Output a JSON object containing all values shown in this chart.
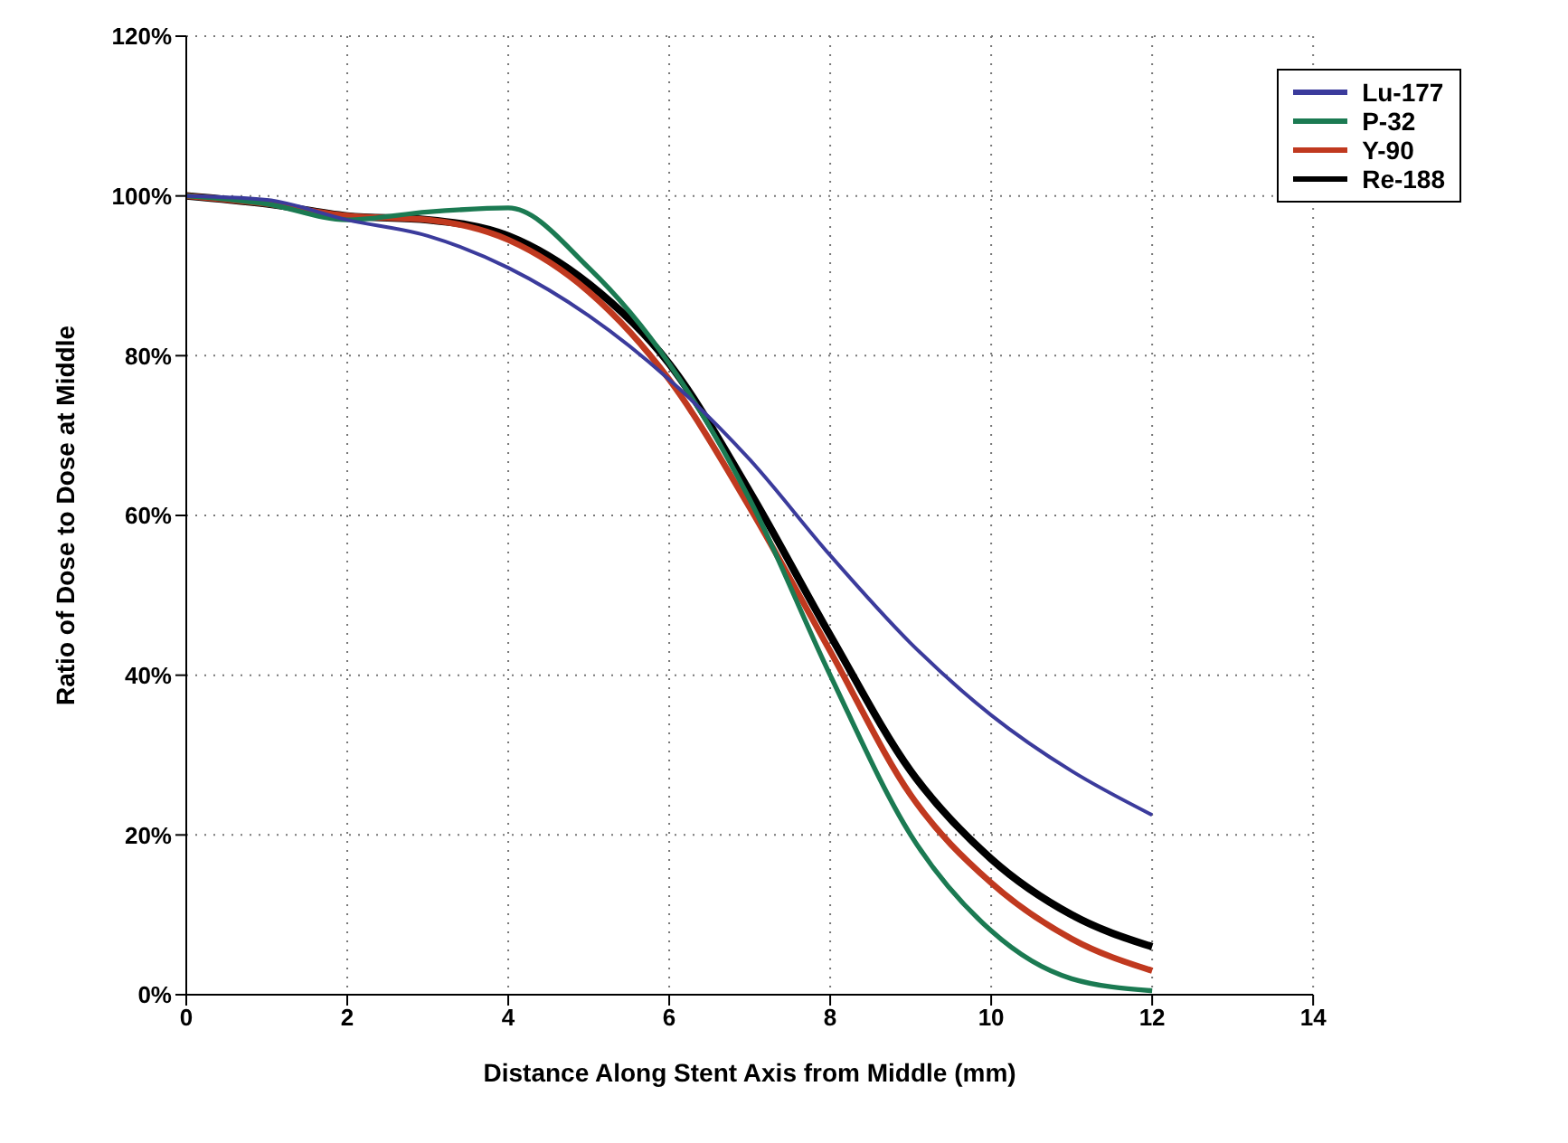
{
  "chart_data": {
    "type": "line",
    "xlabel": "Distance Along Stent Axis from Middle (mm)",
    "ylabel": "Ratio of Dose to Dose at Middle",
    "x": [
      0,
      1,
      2,
      3,
      4,
      5,
      6,
      7,
      8,
      9,
      10,
      11,
      12
    ],
    "series": [
      {
        "name": "Lu-177",
        "color": "#3b3b9c",
        "values": [
          100,
          99.5,
          97,
          95,
          91,
          85,
          77,
          67,
          55,
          44,
          35,
          28,
          22.5
        ]
      },
      {
        "name": "P-32",
        "color": "#1b7a52",
        "values": [
          100,
          99,
          97,
          98,
          98.5,
          91,
          79,
          62,
          40,
          20,
          8,
          2,
          0.5
        ]
      },
      {
        "name": "Y-90",
        "color": "#c0391f",
        "values": [
          100,
          99,
          97.5,
          97,
          94.5,
          88,
          77,
          61,
          43,
          25,
          14,
          7,
          3
        ]
      },
      {
        "name": "Re-188",
        "color": "#000000",
        "values": [
          100,
          99,
          97.5,
          97,
          95,
          89,
          79,
          63,
          45,
          28,
          17,
          10,
          6
        ]
      }
    ],
    "xlim": [
      0,
      14
    ],
    "xticks": [
      0,
      2,
      4,
      6,
      8,
      10,
      12,
      14
    ],
    "ylim": [
      0,
      120
    ],
    "yticks": [
      {
        "value": 0,
        "label": "0%"
      },
      {
        "value": 20,
        "label": "20%"
      },
      {
        "value": 40,
        "label": "40%"
      },
      {
        "value": 60,
        "label": "60%"
      },
      {
        "value": 80,
        "label": "80%"
      },
      {
        "value": 100,
        "label": "100%"
      },
      {
        "value": 120,
        "label": "120%"
      }
    ],
    "grid": true,
    "legend": "top right",
    "marker": "none",
    "line_style": "solid"
  }
}
